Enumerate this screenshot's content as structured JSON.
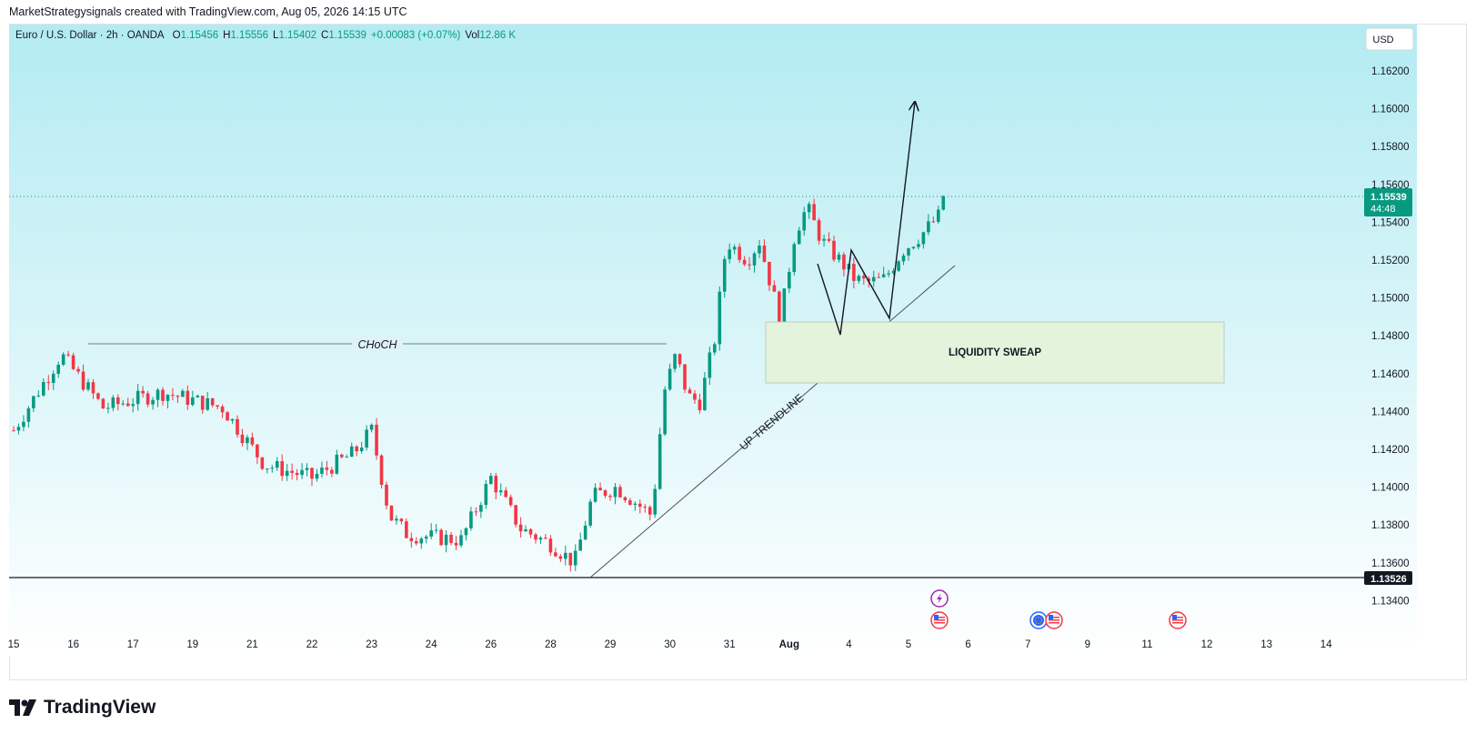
{
  "header": {
    "caption": "MarketStrategysignals created with TradingView.com, Aug 05, 2026 14:15 UTC"
  },
  "legend": {
    "symbol": "Euro / U.S. Dollar · 2h · OANDA",
    "open_label": "O",
    "open": "1.15456",
    "high_label": "H",
    "high": "1.15556",
    "low_label": "L",
    "low": "1.15402",
    "close_label": "C",
    "close": "1.15539",
    "change": "+0.00083 (+0.07%)",
    "vol_label": "Vol",
    "vol": "12.86 K",
    "up_color": "#089981",
    "down_color": "#f23645"
  },
  "currency_button": "USD",
  "price_badge": {
    "price": "1.15539",
    "countdown": "44:48",
    "color": "#089981"
  },
  "support_badge": {
    "price": "1.13526",
    "color": "#131722"
  },
  "annotations": {
    "choch": "CHoCH",
    "trendline": "UP TRENDLINE",
    "liquidity": "LIQUIDITY SWEAP"
  },
  "brand": {
    "name": "TradingView"
  },
  "event_icons": [
    {
      "name": "lightning-event-icon",
      "date": "Aug 05",
      "color": "#9c27b0"
    },
    {
      "name": "us-flag-event-icon",
      "date": "Aug 05",
      "color": "#f23645"
    },
    {
      "name": "eu-flag-event-icon",
      "date": "Aug 07",
      "color": "#2962ff"
    },
    {
      "name": "us-flag-event-icon",
      "date": "Aug 07",
      "color": "#f23645"
    },
    {
      "name": "us-flag-event-icon",
      "date": "Aug 11",
      "color": "#f23645"
    }
  ],
  "chart_data": {
    "type": "candlestick",
    "symbol": "EURUSD",
    "timeframe": "2h",
    "y_ticks": [
      "1.16200",
      "1.16000",
      "1.15800",
      "1.15600",
      "1.15400",
      "1.15200",
      "1.15000",
      "1.14800",
      "1.14600",
      "1.14400",
      "1.14200",
      "1.14000",
      "1.13800",
      "1.13600",
      "1.13400"
    ],
    "ylim": [
      1.1326,
      1.165
    ],
    "x_ticks": [
      {
        "label": "15",
        "day": 15
      },
      {
        "label": "16",
        "day": 16
      },
      {
        "label": "17",
        "day": 17
      },
      {
        "label": "19",
        "day": 18
      },
      {
        "label": "21",
        "day": 19
      },
      {
        "label": "22",
        "day": 20
      },
      {
        "label": "23",
        "day": 21
      },
      {
        "label": "24",
        "day": 22
      },
      {
        "label": "26",
        "day": 23
      },
      {
        "label": "28",
        "day": 24
      },
      {
        "label": "29",
        "day": 25
      },
      {
        "label": "30",
        "day": 26
      },
      {
        "label": "31",
        "day": 27
      },
      {
        "label": "Aug",
        "day": 28
      },
      {
        "label": "4",
        "day": 29
      },
      {
        "label": "5",
        "day": 30
      },
      {
        "label": "6",
        "day": 31
      },
      {
        "label": "7",
        "day": 32
      },
      {
        "label": "9",
        "day": 33
      },
      {
        "label": "11",
        "day": 34
      },
      {
        "label": "12",
        "day": 35
      },
      {
        "label": "13",
        "day": 36
      },
      {
        "label": "14",
        "day": 37
      }
    ],
    "last_price": 1.15539,
    "support_level": 1.13526,
    "choch_level": 1.1476,
    "liquidity_zone": [
      1.1456,
      1.1488
    ],
    "key_points": [
      {
        "day": 15.0,
        "price": 1.143
      },
      {
        "day": 15.8,
        "price": 1.147
      },
      {
        "day": 16.5,
        "price": 1.1442
      },
      {
        "day": 17.5,
        "price": 1.145
      },
      {
        "day": 18.5,
        "price": 1.1442
      },
      {
        "day": 19.2,
        "price": 1.1412
      },
      {
        "day": 20.0,
        "price": 1.1405
      },
      {
        "day": 20.7,
        "price": 1.1418
      },
      {
        "day": 21.0,
        "price": 1.143
      },
      {
        "day": 21.3,
        "price": 1.1385
      },
      {
        "day": 21.6,
        "price": 1.1375
      },
      {
        "day": 22.5,
        "price": 1.1372
      },
      {
        "day": 23.0,
        "price": 1.1405
      },
      {
        "day": 23.5,
        "price": 1.1378
      },
      {
        "day": 24.0,
        "price": 1.137
      },
      {
        "day": 24.4,
        "price": 1.136
      },
      {
        "day": 24.7,
        "price": 1.1395
      },
      {
        "day": 25.1,
        "price": 1.14
      },
      {
        "day": 25.7,
        "price": 1.1385
      },
      {
        "day": 25.9,
        "price": 1.145
      },
      {
        "day": 26.1,
        "price": 1.147
      },
      {
        "day": 26.3,
        "price": 1.1448
      },
      {
        "day": 26.5,
        "price": 1.1445
      },
      {
        "day": 26.75,
        "price": 1.1478
      },
      {
        "day": 26.95,
        "price": 1.153
      },
      {
        "day": 27.3,
        "price": 1.152
      },
      {
        "day": 27.5,
        "price": 1.153
      },
      {
        "day": 27.75,
        "price": 1.15
      },
      {
        "day": 27.85,
        "price": 1.1488
      },
      {
        "day": 28.1,
        "price": 1.1535
      },
      {
        "day": 28.3,
        "price": 1.1548
      },
      {
        "day": 28.55,
        "price": 1.153
      },
      {
        "day": 28.9,
        "price": 1.1518
      },
      {
        "day": 29.1,
        "price": 1.151
      },
      {
        "day": 29.3,
        "price": 1.1508
      },
      {
        "day": 29.6,
        "price": 1.151
      },
      {
        "day": 29.9,
        "price": 1.1525
      },
      {
        "day": 30.2,
        "price": 1.1533
      },
      {
        "day": 30.5,
        "price": 1.1543
      },
      {
        "day": 30.55,
        "price": 1.15539
      }
    ]
  }
}
